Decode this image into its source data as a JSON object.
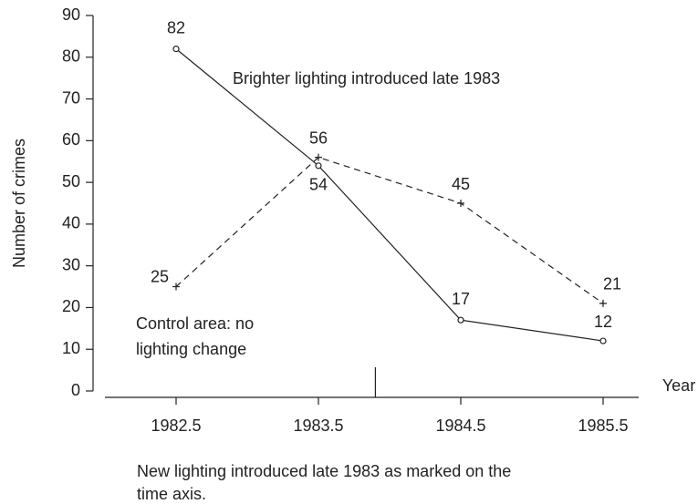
{
  "chart_data": {
    "type": "line",
    "x": [
      1982.5,
      1983.5,
      1984.5,
      1985.5
    ],
    "series": [
      {
        "color": "#222222",
        "dash": "solid",
        "marker": "circle",
        "values": [
          82,
          54,
          17,
          12
        ]
      },
      {
        "color": "#222222",
        "dash": "dashed",
        "marker": "plus",
        "values": [
          25,
          56,
          45,
          21
        ]
      }
    ],
    "ylabel": "Number of crimes",
    "xlabel": "Year",
    "xlim": [
      1982,
      1985.75
    ],
    "ylim": [
      0,
      90
    ],
    "xticks": [
      1982.5,
      1983.5,
      1984.5,
      1985.5
    ],
    "yticks": [
      0,
      10,
      20,
      30,
      40,
      50,
      60,
      70,
      80,
      90
    ],
    "event_x": 1983.9,
    "annotations": [
      {
        "lines": [
          "Brighter lighting introduced late 1983"
        ]
      },
      {
        "lines": [
          "Control area: no",
          "lighting change"
        ]
      }
    ],
    "caption": {
      "lines": [
        "New lighting introduced late 1983 as marked on the",
        "time axis."
      ]
    }
  }
}
